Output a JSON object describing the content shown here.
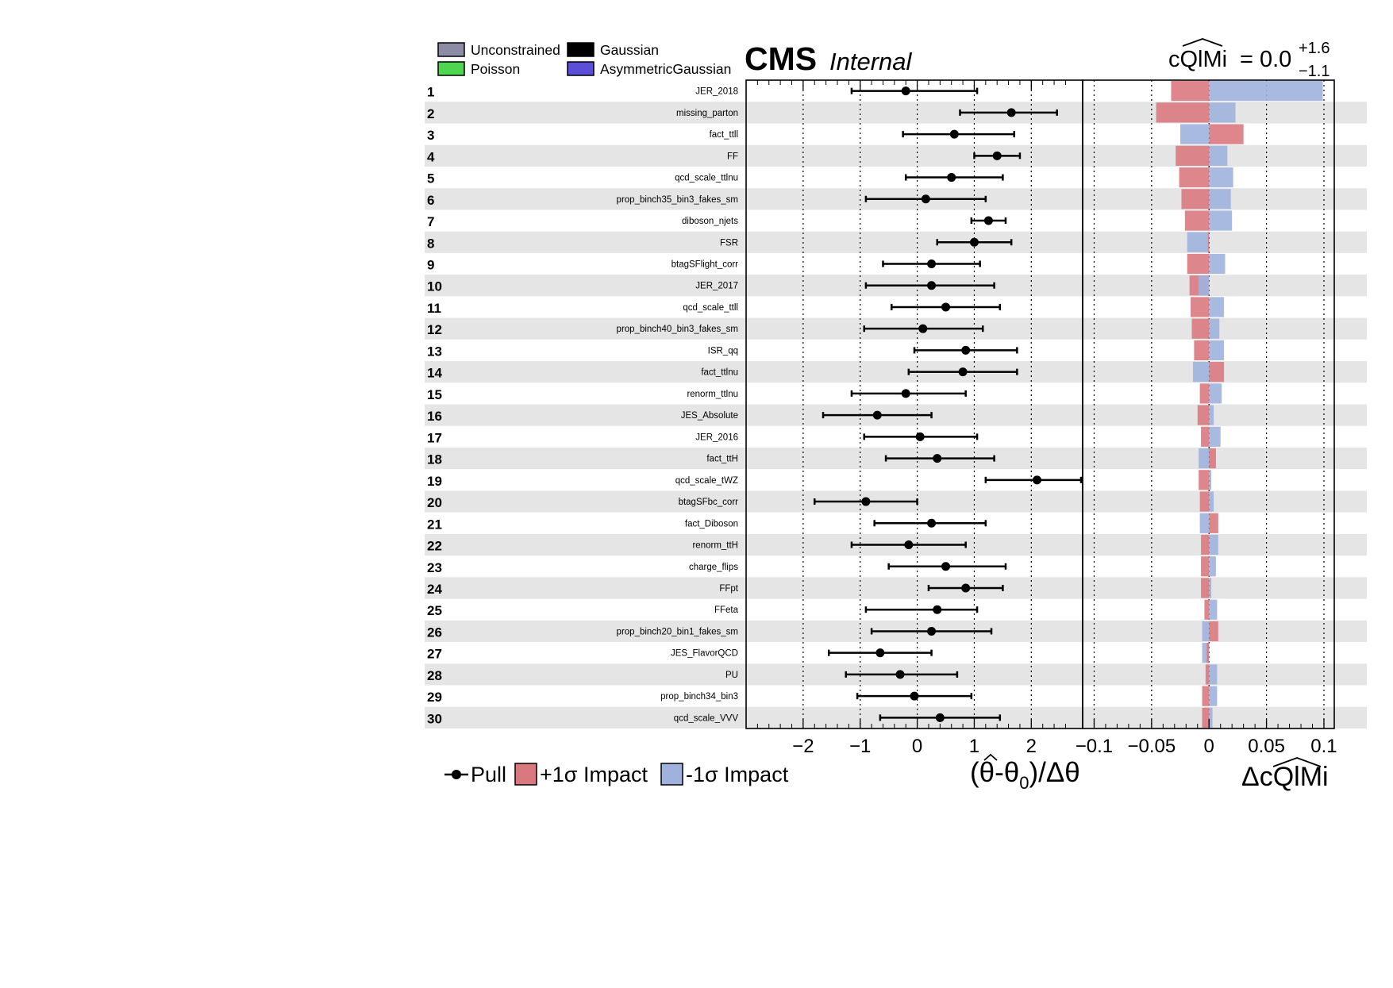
{
  "header": {
    "cms": "CMS",
    "internal": "Internal",
    "poi_name": "cQlMi",
    "poi_value": "= 0.0",
    "poi_err_up": "+1.6",
    "poi_err_down": "−1.1"
  },
  "type_legend": [
    {
      "label": "Unconstrained",
      "color": "#8c8ca6"
    },
    {
      "label": "Gaussian",
      "color": "#000000"
    },
    {
      "label": "Poisson",
      "color": "#4fd64f"
    },
    {
      "label": "AsymmetricGaussian",
      "color": "#5a4fd6"
    }
  ],
  "bottom_legend": {
    "pull": "Pull",
    "up_impact": "+1σ Impact",
    "down_impact": "-1σ Impact"
  },
  "colors": {
    "up_impact": "#d9797f",
    "down_impact": "#9fb2dd",
    "stripe": "#e5e5e5",
    "poisson_text": "#4fd64f"
  },
  "chart_data": [
    {
      "type": "scatter",
      "title": "",
      "xlabel": "(θ̂-θ0)/Δθ",
      "xlim": [
        -3,
        2.9
      ],
      "xticks": [
        "−2",
        "−1",
        "0",
        "1",
        "2"
      ],
      "grid": "dotted vertical lines at -2,-1,0,1,2",
      "categories": [
        "JER_2018",
        "missing_parton",
        "fact_ttll",
        "FF",
        "qcd_scale_ttlnu",
        "prop_binch35_bin3_fakes_sm",
        "diboson_njets",
        "FSR",
        "btagSFlight_corr",
        "JER_2017",
        "qcd_scale_ttll",
        "prop_binch40_bin3_fakes_sm",
        "ISR_qq",
        "fact_ttlnu",
        "renorm_ttlnu",
        "JES_Absolute",
        "JER_2016",
        "fact_ttH",
        "qcd_scale_tWZ",
        "btagSFbc_corr",
        "fact_Diboson",
        "renorm_ttH",
        "charge_flips",
        "FFpt",
        "FFeta",
        "prop_binch20_bin1_fakes_sm",
        "JES_FlavorQCD",
        "PU",
        "prop_binch34_bin3",
        "qcd_scale_VVV"
      ],
      "row_numbers": [
        "1",
        "2",
        "3",
        "4",
        "5",
        "6",
        "7",
        "8",
        "9",
        "10",
        "11",
        "12",
        "13",
        "14",
        "15",
        "16",
        "17",
        "18",
        "19",
        "20",
        "21",
        "22",
        "23",
        "24",
        "25",
        "26",
        "27",
        "28",
        "29",
        "30"
      ],
      "param_types": [
        "Gaussian",
        "Gaussian",
        "Gaussian",
        "Gaussian",
        "Gaussian",
        "Poisson",
        "Gaussian",
        "Gaussian",
        "Gaussian",
        "Gaussian",
        "Gaussian",
        "Poisson",
        "Gaussian",
        "Gaussian",
        "Gaussian",
        "Gaussian",
        "Gaussian",
        "Gaussian",
        "Gaussian",
        "Gaussian",
        "Gaussian",
        "Gaussian",
        "Gaussian",
        "Gaussian",
        "Gaussian",
        "Poisson",
        "Gaussian",
        "Gaussian",
        "Gaussian",
        "Gaussian"
      ],
      "series": [
        {
          "name": "Pull",
          "values": [
            -0.2,
            1.65,
            0.65,
            1.4,
            0.6,
            0.15,
            1.25,
            1.0,
            0.25,
            0.25,
            0.5,
            0.1,
            0.85,
            0.8,
            -0.2,
            -0.7,
            0.05,
            0.35,
            2.1,
            -0.9,
            0.25,
            -0.15,
            0.5,
            0.85,
            0.35,
            0.25,
            -0.65,
            -0.3,
            -0.05,
            0.4
          ],
          "err_low": [
            -1.15,
            0.75,
            -0.25,
            1.0,
            -0.2,
            -0.9,
            0.95,
            0.35,
            -0.6,
            -0.9,
            -0.45,
            -0.93,
            -0.05,
            -0.15,
            -1.15,
            -1.65,
            -0.93,
            -0.55,
            1.2,
            -1.8,
            -0.75,
            -1.15,
            -0.5,
            0.2,
            -0.9,
            -0.8,
            -1.55,
            -1.25,
            -1.05,
            -0.65
          ],
          "err_high": [
            1.05,
            2.45,
            1.7,
            1.8,
            1.5,
            1.2,
            1.55,
            1.65,
            1.1,
            1.35,
            1.45,
            1.15,
            1.75,
            1.75,
            0.85,
            0.25,
            1.05,
            1.35,
            2.9,
            0.0,
            1.2,
            0.85,
            1.55,
            1.5,
            1.05,
            1.3,
            0.25,
            0.7,
            0.95,
            1.45
          ]
        }
      ]
    },
    {
      "type": "bar",
      "title": "",
      "xlabel": "ΔcQlMi",
      "xlim": [
        -0.11,
        0.109
      ],
      "xticks": [
        "−0.1",
        "−0.05",
        "0",
        "0.05",
        "0.1"
      ],
      "grid": "dotted vertical lines at -0.1,-0.05,0,0.05,0.1",
      "series": [
        {
          "name": "+1σ Impact",
          "values": [
            -0.033,
            -0.046,
            0.03,
            -0.029,
            -0.026,
            -0.024,
            -0.021,
            -0.001,
            -0.019,
            -0.017,
            -0.016,
            -0.015,
            -0.013,
            0.013,
            -0.008,
            -0.01,
            -0.007,
            0.006,
            -0.009,
            -0.008,
            0.008,
            -0.007,
            -0.007,
            -0.007,
            -0.004,
            0.008,
            -0.002,
            -0.003,
            -0.006,
            -0.006
          ]
        },
        {
          "name": "-1σ Impact",
          "values": [
            0.099,
            0.023,
            -0.025,
            0.016,
            0.021,
            0.019,
            0.02,
            -0.019,
            0.014,
            -0.009,
            0.013,
            0.009,
            0.013,
            -0.014,
            0.011,
            0.004,
            0.01,
            -0.009,
            0.002,
            0.004,
            -0.008,
            0.008,
            0.006,
            0.002,
            0.007,
            -0.006,
            -0.006,
            0.007,
            0.007,
            0.003
          ]
        }
      ]
    }
  ]
}
